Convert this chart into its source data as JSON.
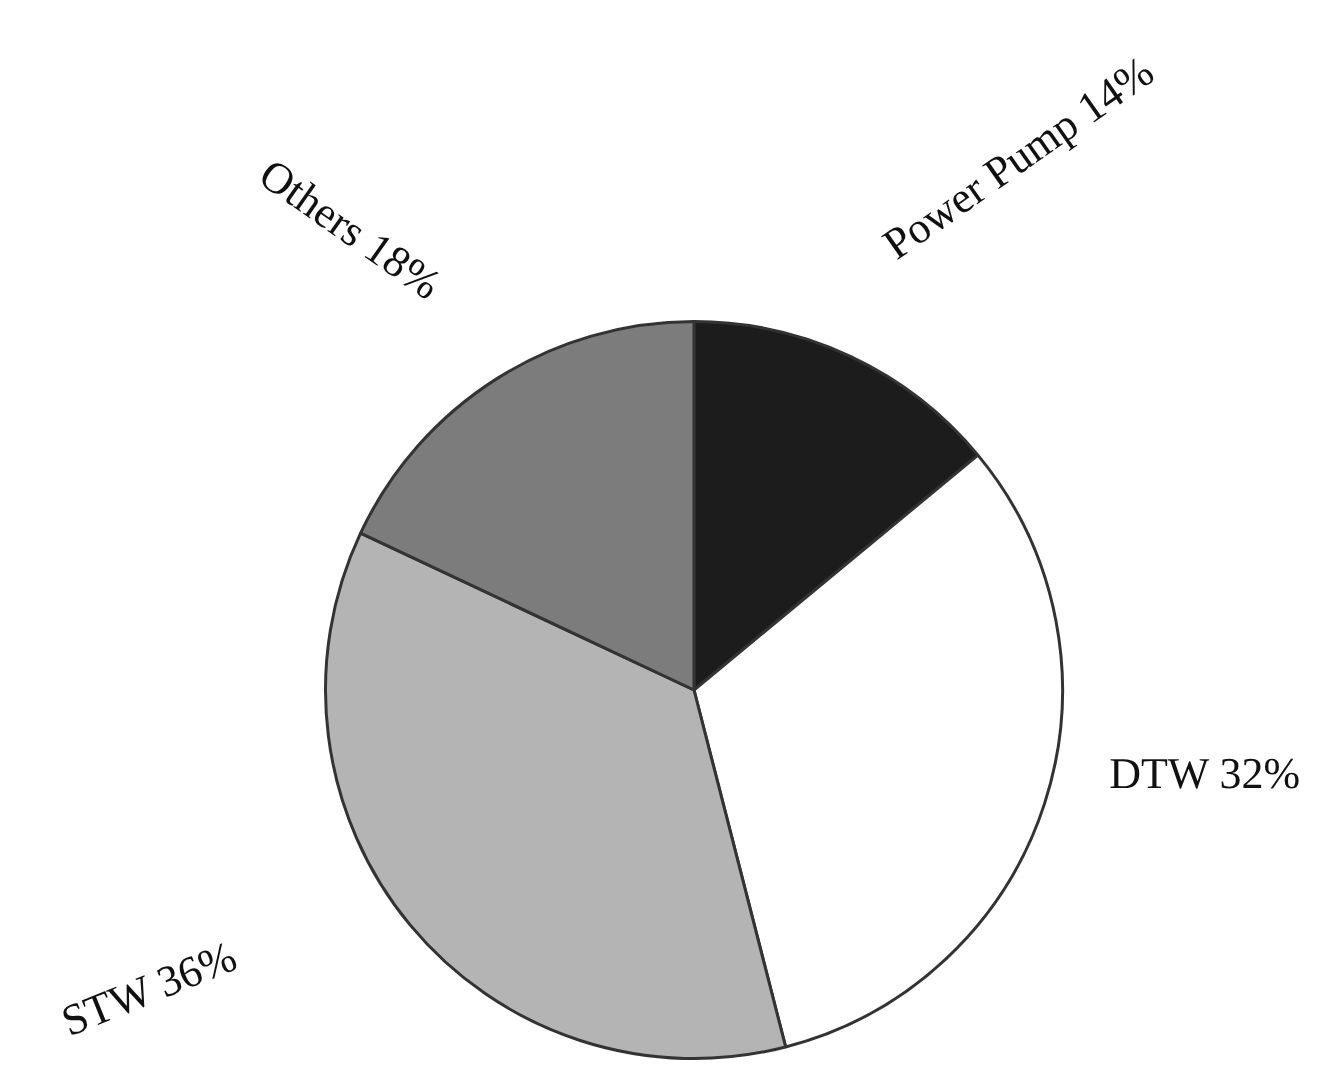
{
  "chart_data": {
    "type": "pie",
    "categories": [
      "Power Pump",
      "DTW",
      "STW",
      "Others"
    ],
    "values": [
      14,
      32,
      36,
      18
    ],
    "value_labels": [
      "14%",
      "32%",
      "36%",
      "18%"
    ],
    "colors": [
      "#1c1c1c",
      "#ffffff",
      "#b4b4b4",
      "#7c7c7c"
    ],
    "legend": false
  }
}
